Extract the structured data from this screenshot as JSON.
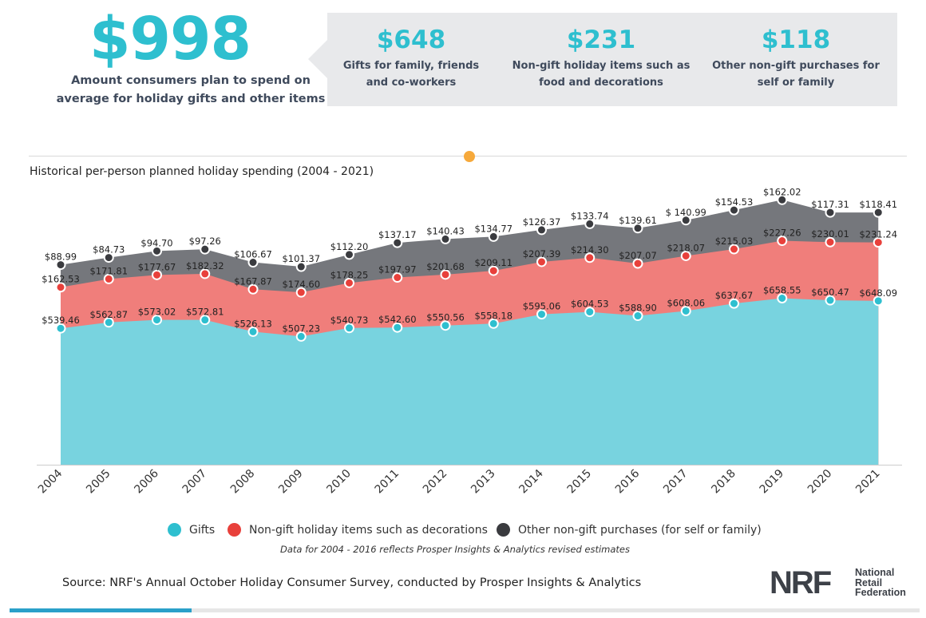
{
  "headline": {
    "total": "$998",
    "description": "Amount consumers plan to spend on average for holiday gifts and other items"
  },
  "breakdown": [
    {
      "amount": "$648",
      "label": "Gifts for family, friends and co-workers"
    },
    {
      "amount": "$231",
      "label": "Non-gift holiday items such as food and decorations"
    },
    {
      "amount": "$118",
      "label": "Other non-gift purchases for self or family"
    }
  ],
  "chart_data": {
    "type": "area",
    "stacked": true,
    "title": "Historical per-person planned holiday spending (2004 - 2021)",
    "categories": [
      "2004",
      "2005",
      "2006",
      "2007",
      "2008",
      "2009",
      "2010",
      "2011",
      "2012",
      "2013",
      "2014",
      "2015",
      "2016",
      "2017",
      "2018",
      "2019",
      "2020",
      "2021"
    ],
    "series": [
      {
        "name": "Gifts",
        "color": "#78d3df",
        "marker": "#2ebfcf",
        "values": [
          539.46,
          562.87,
          573.02,
          572.81,
          526.13,
          507.23,
          540.73,
          542.6,
          550.56,
          558.18,
          595.06,
          604.53,
          588.9,
          608.06,
          637.67,
          658.55,
          650.47,
          648.09
        ],
        "labels": [
          "$539.46",
          "$562.87",
          "$573.02",
          "$572.81",
          "$526.13",
          "$507.23",
          "$540.73",
          "$542.60",
          "$550.56",
          "$558.18",
          "$595.06",
          "$604.53",
          "$588.90",
          "$608.06",
          "$637.67",
          "$658.55",
          "$650.47",
          "$648.09"
        ]
      },
      {
        "name": "Non-gift holiday items such as decorations",
        "color": "#f07e7b",
        "marker": "#e8403b",
        "values": [
          162.53,
          171.81,
          177.67,
          182.32,
          167.87,
          174.6,
          178.25,
          197.97,
          201.68,
          209.11,
          207.39,
          214.3,
          207.07,
          218.07,
          215.03,
          227.26,
          230.01,
          231.24
        ],
        "labels": [
          "$162.53",
          "$171.81",
          "$177.67",
          "$182.32",
          "$167.87",
          "$174.60",
          "$178.25",
          "$197.97",
          "$201.68",
          "$209.11",
          "$207.39",
          "$214.30",
          "$207.07",
          "$218.07",
          "$215.03",
          "$227.26",
          "$230.01",
          "$231.24"
        ]
      },
      {
        "name": "Other non-gift purchases (for self or family)",
        "color": "#75777c",
        "marker": "#3a3b3f",
        "values": [
          88.99,
          84.73,
          94.7,
          97.26,
          106.67,
          101.37,
          112.2,
          137.17,
          140.43,
          134.77,
          126.37,
          133.74,
          139.61,
          140.99,
          154.53,
          162.02,
          117.31,
          118.41
        ],
        "labels": [
          "$88.99",
          "$84.73",
          "$94.70",
          "$97.26",
          "$106.67",
          "$101.37",
          "$112.20",
          "$137.17",
          "$140.43",
          "$134.77",
          "$126.37",
          "$133.74",
          "$139.61",
          "$ 140.99",
          "$154.53",
          "$162.02",
          "$117.31",
          "$118.41"
        ]
      }
    ],
    "legend_position": "bottom",
    "grid": false
  },
  "legend": {
    "gifts": "Gifts",
    "nongift": "Non-gift holiday items such as decorations",
    "other": "Other non-gift purchases (for self or family)"
  },
  "note": "Data for 2004 - 2016 reflects Prosper Insights & Analytics revised estimates",
  "source": "Source: NRF's Annual October Holiday Consumer Survey, conducted by Prosper Insights & Analytics",
  "logo": {
    "mark": "NRF",
    "line1": "National",
    "line2": "Retail",
    "line3": "Federation"
  },
  "colors": {
    "accent": "#2ebfcf",
    "orange_dot": "#f6a93b",
    "bar": "#2aa0c9"
  }
}
